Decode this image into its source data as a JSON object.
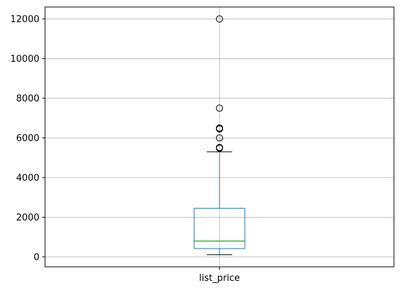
{
  "chart_data": {
    "type": "boxplot",
    "title": "",
    "xlabel": "",
    "ylabel": "",
    "categories": [
      "list_price"
    ],
    "ylim": [
      -500,
      12600
    ],
    "yticks": [
      0,
      2000,
      4000,
      6000,
      8000,
      10000,
      12000
    ],
    "ytick_labels": [
      "0",
      "2000",
      "4000",
      "6000",
      "8000",
      "10000",
      "12000"
    ],
    "grid": true,
    "boxes": [
      {
        "category": "list_price",
        "whisker_low": 110,
        "q1": 420,
        "median": 800,
        "q3": 2450,
        "whisker_high": 5300,
        "outliers": [
          5480,
          5500,
          5520,
          6000,
          6450,
          6480,
          6500,
          7500,
          12000
        ]
      }
    ],
    "colors": {
      "box": "#1f77b4",
      "median": "#2ca02c",
      "whisker_cap": "#000000",
      "outlier": "#000000",
      "grid": "#b0b0b0",
      "axes": "#000000"
    }
  }
}
